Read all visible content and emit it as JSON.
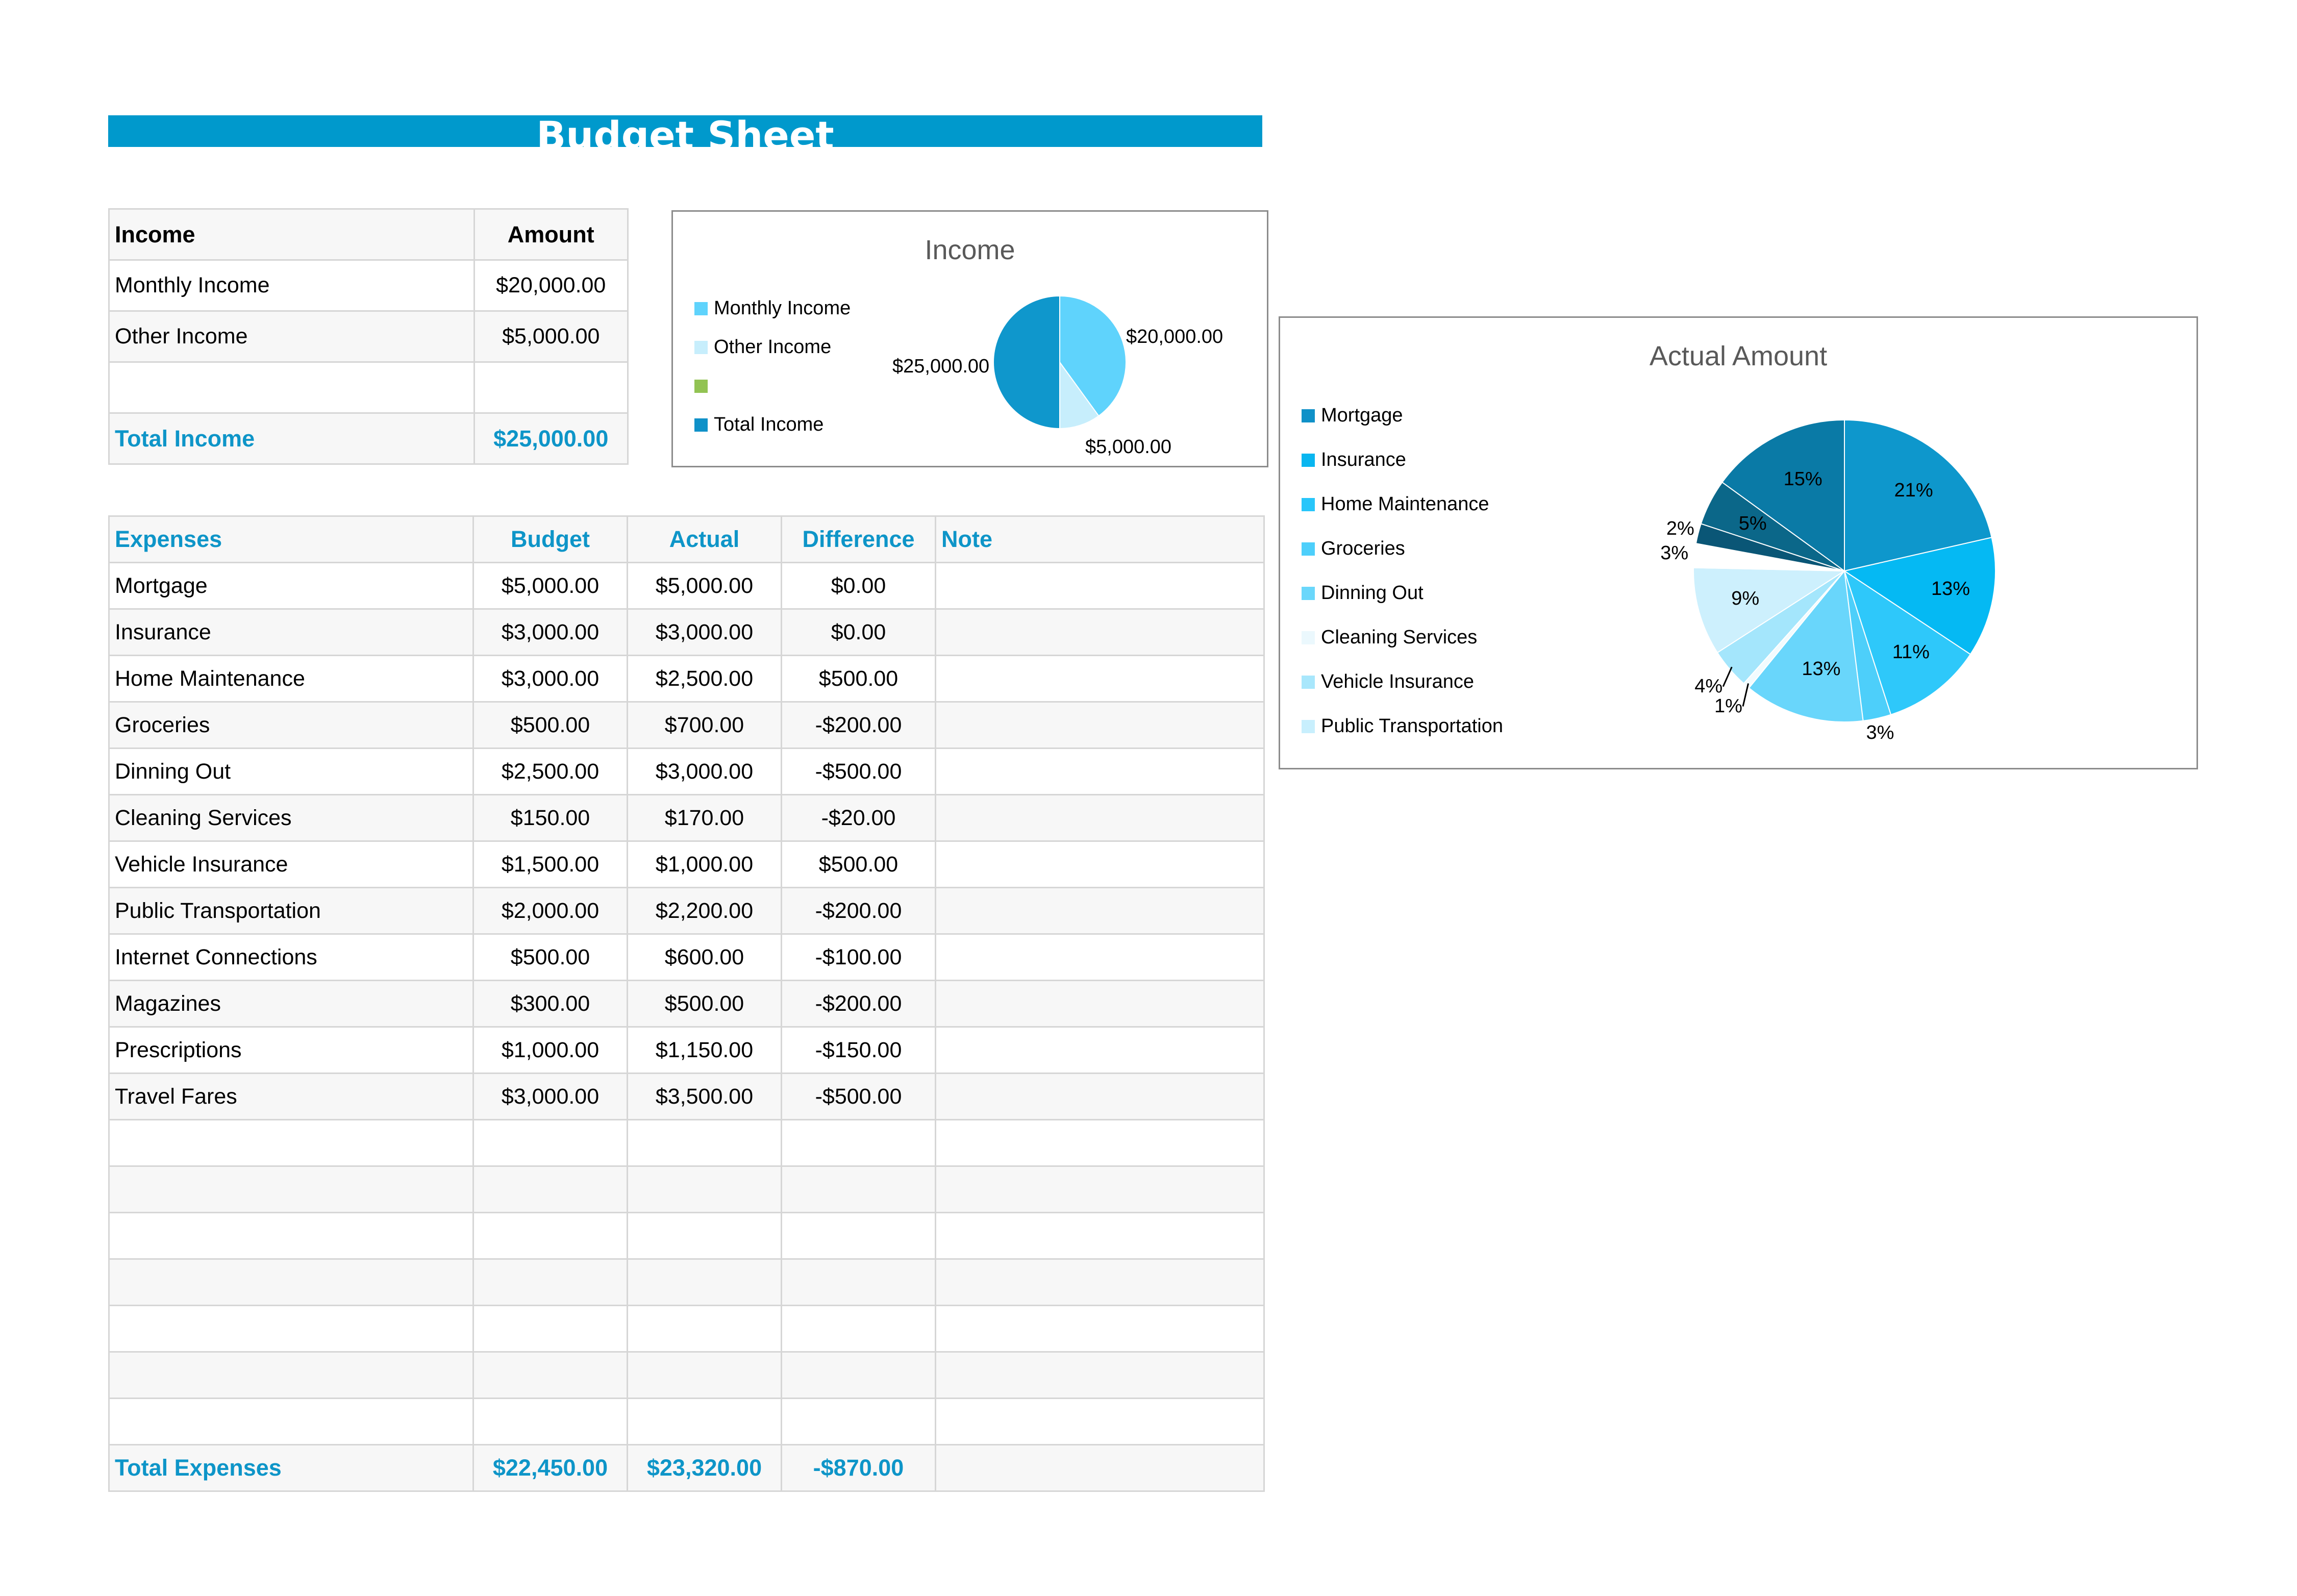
{
  "header": {
    "title": "Budget Sheet"
  },
  "income_table": {
    "headers": [
      "Income",
      "Amount"
    ],
    "rows": [
      [
        "Monthly Income",
        "$20,000.00"
      ],
      [
        "Other Income",
        "$5,000.00"
      ],
      [
        "",
        ""
      ]
    ],
    "total": [
      "Total Income",
      "$25,000.00"
    ]
  },
  "expense_table": {
    "headers": [
      "Expenses",
      "Budget",
      "Actual",
      "Difference",
      "Note"
    ],
    "rows": [
      [
        "Mortgage",
        "$5,000.00",
        "$5,000.00",
        "$0.00",
        ""
      ],
      [
        "Insurance",
        "$3,000.00",
        "$3,000.00",
        "$0.00",
        ""
      ],
      [
        "Home Maintenance",
        "$3,000.00",
        "$2,500.00",
        "$500.00",
        ""
      ],
      [
        "Groceries",
        "$500.00",
        "$700.00",
        "-$200.00",
        ""
      ],
      [
        "Dinning Out",
        "$2,500.00",
        "$3,000.00",
        "-$500.00",
        ""
      ],
      [
        "Cleaning Services",
        "$150.00",
        "$170.00",
        "-$20.00",
        ""
      ],
      [
        "Vehicle Insurance",
        "$1,500.00",
        "$1,000.00",
        "$500.00",
        ""
      ],
      [
        "Public Transportation",
        "$2,000.00",
        "$2,200.00",
        "-$200.00",
        ""
      ],
      [
        "Internet Connections",
        "$500.00",
        "$600.00",
        "-$100.00",
        ""
      ],
      [
        "Magazines",
        "$300.00",
        "$500.00",
        "-$200.00",
        ""
      ],
      [
        "Prescriptions",
        "$1,000.00",
        "$1,150.00",
        "-$150.00",
        ""
      ],
      [
        "Travel Fares",
        "$3,000.00",
        "$3,500.00",
        "-$500.00",
        ""
      ],
      [
        "",
        "",
        "",
        "",
        ""
      ],
      [
        "",
        "",
        "",
        "",
        ""
      ],
      [
        "",
        "",
        "",
        "",
        ""
      ],
      [
        "",
        "",
        "",
        "",
        ""
      ],
      [
        "",
        "",
        "",
        "",
        ""
      ],
      [
        "",
        "",
        "",
        "",
        ""
      ],
      [
        "",
        "",
        "",
        "",
        ""
      ]
    ],
    "total": [
      "Total Expenses",
      "$22,450.00",
      "$23,320.00",
      "-$870.00",
      ""
    ]
  },
  "chart_data": [
    {
      "type": "pie",
      "title": "Income",
      "legend": [
        "Monthly Income",
        "Other Income",
        "",
        "Total Income"
      ],
      "legend_colors": [
        "#5fd3fc",
        "#c7eefc",
        "#92c353",
        "#0f91c8"
      ],
      "slices": [
        {
          "name": "Monthly Income",
          "value": 20000,
          "label": "$20,000.00",
          "color": "#5fd3fc"
        },
        {
          "name": "Other Income",
          "value": 5000,
          "label": "$5,000.00",
          "color": "#c7eefc"
        },
        {
          "name": "Total Income",
          "value": 25000,
          "label": "$25,000.00",
          "color": "#0f97cc"
        }
      ],
      "legend_position": "left"
    },
    {
      "type": "pie",
      "title": "Actual Amount",
      "legend": [
        "Mortgage",
        "Insurance",
        "Home Maintenance",
        "Groceries",
        "Dinning Out",
        "Cleaning Services",
        "Vehicle Insurance",
        "Public Transportation"
      ],
      "legend_colors": [
        "#0f91c8",
        "#09b6f0",
        "#28c6fa",
        "#4dcffb",
        "#6ad7fb",
        "#ebf8fd",
        "#a8e7fc",
        "#c8effd"
      ],
      "slices": [
        {
          "name": "Mortgage",
          "value": 5000,
          "label": "21%",
          "color": "#0e97cc"
        },
        {
          "name": "Insurance",
          "value": 3000,
          "label": "13%",
          "color": "#05b9f3"
        },
        {
          "name": "Home Maintenance",
          "value": 2500,
          "label": "11%",
          "color": "#2ec8fa"
        },
        {
          "name": "Groceries",
          "value": 700,
          "label": "3%",
          "color": "#4dcffa"
        },
        {
          "name": "Dinning Out",
          "value": 3000,
          "label": "13%",
          "color": "#69d6fb"
        },
        {
          "name": "Cleaning Services",
          "value": 170,
          "label": "1%",
          "color": "#f2fbfe"
        },
        {
          "name": "Vehicle Insurance",
          "value": 1000,
          "label": "4%",
          "color": "#a4e6fc"
        },
        {
          "name": "Public Transportation",
          "value": 2200,
          "label": "9%",
          "color": "#cdf0fd"
        },
        {
          "name": "Internet Connections",
          "value": 600,
          "label": "3%",
          "color": "#ffffff"
        },
        {
          "name": "Magazines",
          "value": 500,
          "label": "2%",
          "color": "#0a5676"
        },
        {
          "name": "Prescriptions",
          "value": 1150,
          "label": "5%",
          "color": "#0b6789"
        },
        {
          "name": "Travel Fares",
          "value": 3500,
          "label": "15%",
          "color": "#0a7aa6"
        }
      ],
      "legend_position": "left"
    }
  ]
}
